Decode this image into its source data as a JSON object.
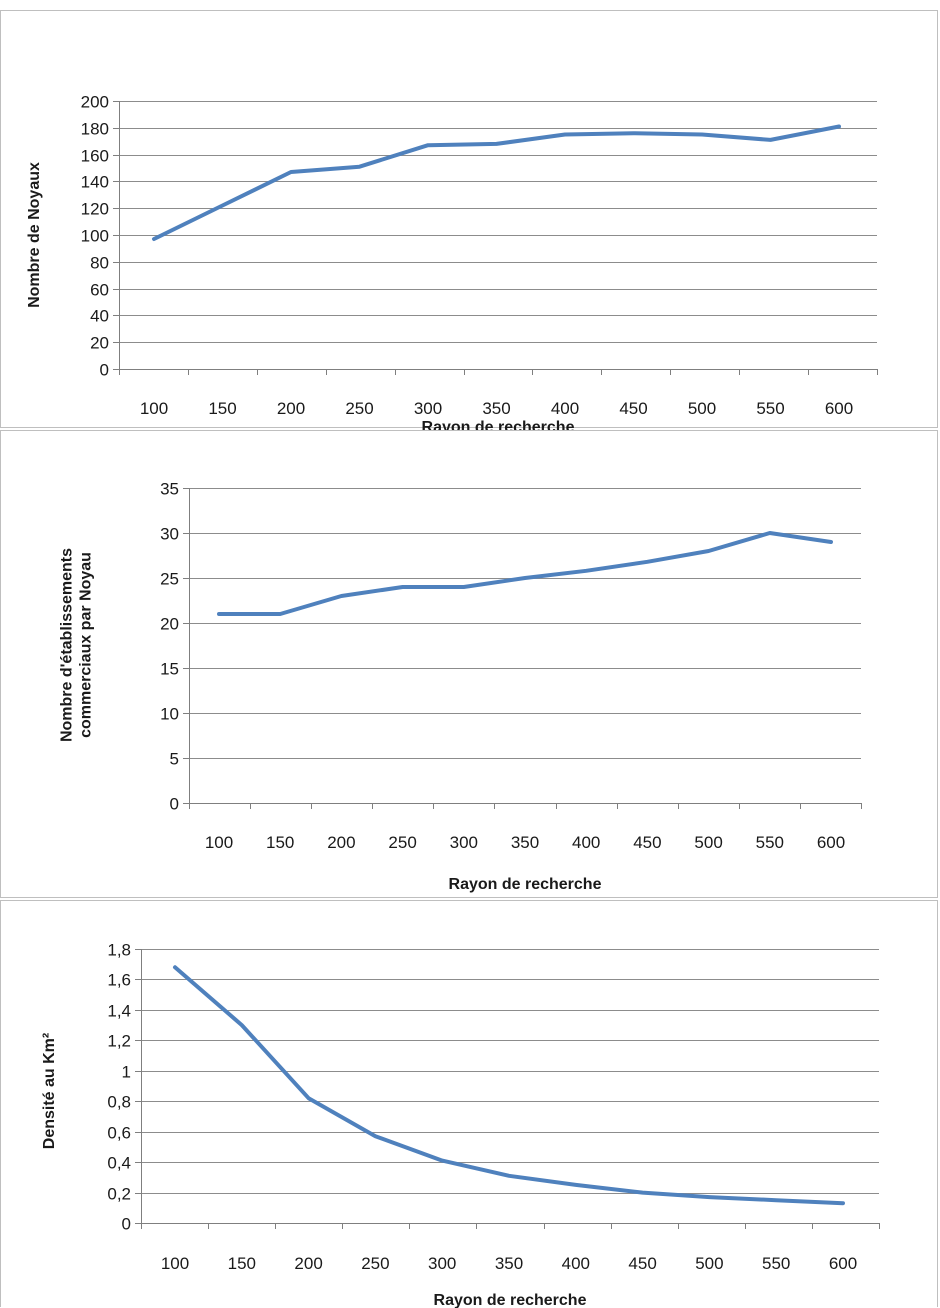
{
  "chart_data": [
    {
      "type": "line",
      "title": "",
      "xlabel": "Rayon de recherche",
      "ylabel": [
        "Nombre de Noyaux"
      ],
      "categories": [
        "100",
        "150",
        "200",
        "250",
        "300",
        "350",
        "400",
        "450",
        "500",
        "550",
        "600"
      ],
      "series": [
        {
          "values": [
            97,
            122,
            147,
            151,
            167,
            168,
            175,
            176,
            175,
            171,
            181
          ]
        }
      ],
      "ylim": [
        0,
        200
      ],
      "ystep": 20,
      "yticks": [
        "0",
        "20",
        "40",
        "60",
        "80",
        "100",
        "120",
        "140",
        "160",
        "180",
        "200"
      ],
      "grid": true,
      "legend": "none",
      "color": "#4f81bd"
    },
    {
      "type": "line",
      "title": "",
      "xlabel": "Rayon de recherche",
      "ylabel": [
        "Nombre d'établissements",
        "commerciaux par Noyau"
      ],
      "categories": [
        "100",
        "150",
        "200",
        "250",
        "300",
        "350",
        "400",
        "450",
        "500",
        "550",
        "600"
      ],
      "series": [
        {
          "values": [
            21,
            21,
            23,
            24,
            24,
            25,
            25.8,
            26.8,
            28,
            30,
            29
          ]
        }
      ],
      "ylim": [
        0,
        35
      ],
      "ystep": 5,
      "yticks": [
        "0",
        "5",
        "10",
        "15",
        "20",
        "25",
        "30",
        "35"
      ],
      "grid": true,
      "legend": "none",
      "color": "#4f81bd"
    },
    {
      "type": "line",
      "title": "",
      "xlabel": "Rayon de recherche",
      "ylabel": [
        "Densité au Km²"
      ],
      "categories": [
        "100",
        "150",
        "200",
        "250",
        "300",
        "350",
        "400",
        "450",
        "500",
        "550",
        "600"
      ],
      "series": [
        {
          "values": [
            1.68,
            1.3,
            0.82,
            0.57,
            0.41,
            0.31,
            0.25,
            0.2,
            0.17,
            0.15,
            0.13
          ]
        }
      ],
      "ylim": [
        0,
        1.8
      ],
      "ystep": 0.2,
      "yticks": [
        "0",
        "0,2",
        "0,4",
        "0,6",
        "0,8",
        "1",
        "1,2",
        "1,4",
        "1,6",
        "1,8"
      ],
      "grid": true,
      "legend": "none",
      "color": "#4f81bd"
    }
  ]
}
